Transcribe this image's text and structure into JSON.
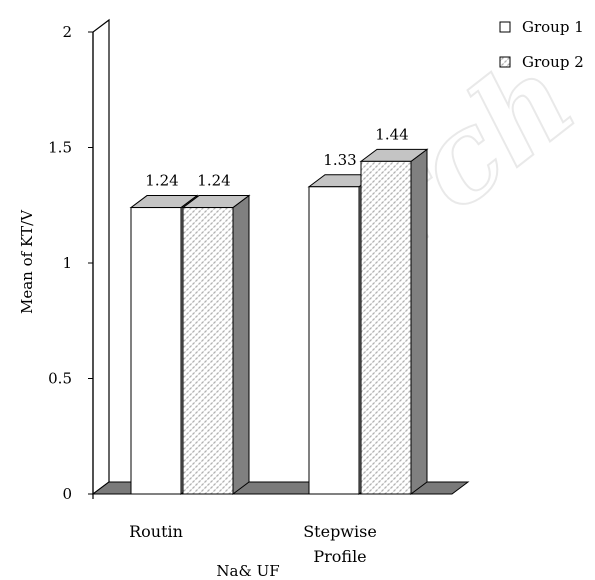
{
  "chart_data": {
    "type": "bar",
    "xlabel": "Na& UF",
    "ylabel": "Mean of KT/V",
    "ylim": [
      0,
      2
    ],
    "yticks": [
      "0",
      "0.5",
      "1",
      "1.5",
      "2"
    ],
    "categories": [
      "Routin",
      "Stepwise Profile"
    ],
    "series": [
      {
        "name": "Group 1",
        "values": [
          1.24,
          1.33
        ],
        "labels": [
          "1.24",
          "1.33"
        ]
      },
      {
        "name": "Group 2",
        "values": [
          1.24,
          1.44
        ],
        "labels": [
          "1.24",
          "1.44"
        ]
      }
    ],
    "legend": "top-right",
    "grid": false,
    "style": "3d-bars"
  },
  "watermark": "Arch",
  "colors": {
    "wall": "#ffffff",
    "floor": "#7a7a7a",
    "side": "#808080",
    "top": "#c4c4c4",
    "pattern": "#9a9a9a"
  }
}
